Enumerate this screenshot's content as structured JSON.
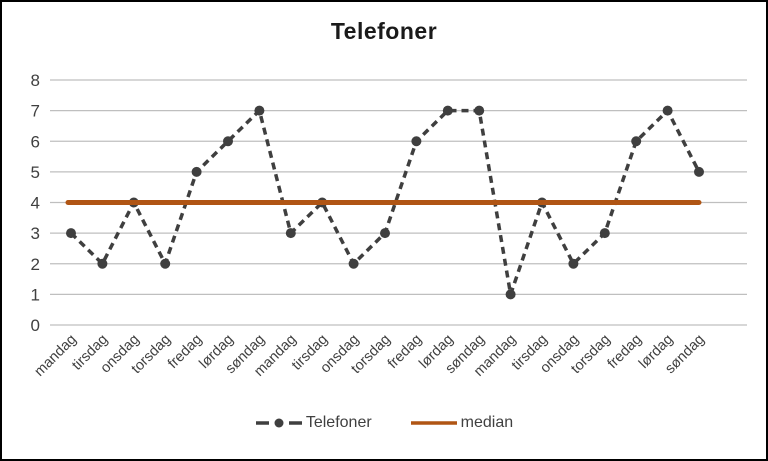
{
  "title": "Telefoner",
  "chart_data": {
    "type": "line",
    "title": "Telefoner",
    "categories": [
      "mandag",
      "tirsdag",
      "onsdag",
      "torsdag",
      "fredag",
      "lørdag",
      "søndag",
      "mandag",
      "tirsdag",
      "onsdag",
      "torsdag",
      "fredag",
      "lørdag",
      "søndag",
      "mandag",
      "tirsdag",
      "onsdag",
      "torsdag",
      "fredag",
      "lørdag",
      "søndag"
    ],
    "series": [
      {
        "name": "Telefoner",
        "style": "dashed-line-with-round-markers",
        "color": "#3f3f3f",
        "values": [
          3,
          2,
          4,
          2,
          5,
          6,
          7,
          3,
          4,
          2,
          3,
          6,
          7,
          7,
          1,
          4,
          2,
          3,
          6,
          7,
          5
        ]
      },
      {
        "name": "median",
        "style": "solid-constant-line",
        "color": "#b05514",
        "value": 4
      }
    ],
    "xlabel": "",
    "ylabel": "",
    "ylim": [
      0,
      8
    ],
    "yticks": [
      0,
      1,
      2,
      3,
      4,
      5,
      6,
      7,
      8
    ],
    "grid": "horizontal",
    "legend_position": "bottom"
  },
  "legend": {
    "items": [
      {
        "label": "Telefoner"
      },
      {
        "label": "median"
      }
    ]
  },
  "colors": {
    "series": "#3f3f3f",
    "median": "#b05514",
    "gridline": "#bfbfbf",
    "axis_text": "#404040",
    "title_text": "#1a1a1a",
    "background": "#ffffff",
    "border": "#000000"
  }
}
